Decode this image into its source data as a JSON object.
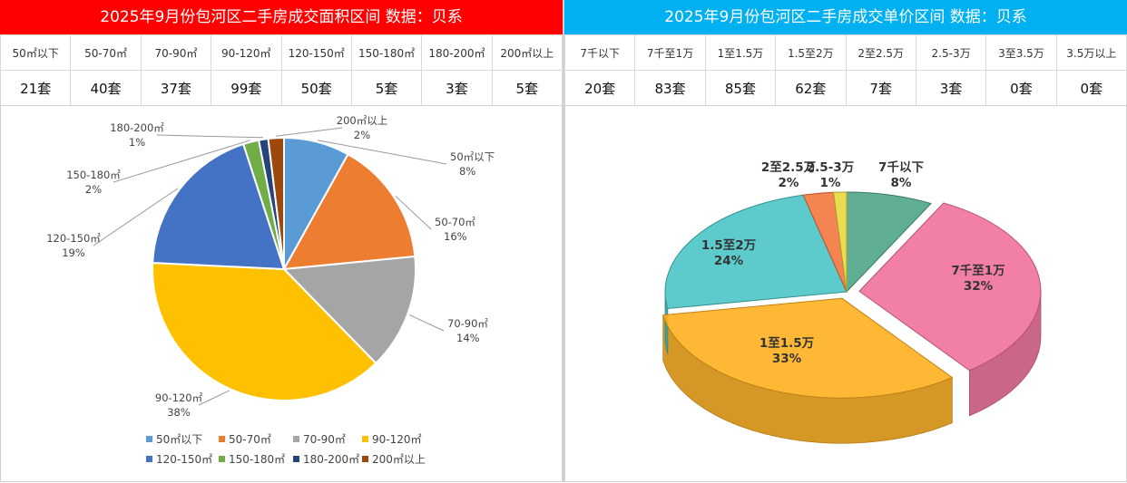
{
  "left": {
    "title": "2025年9月份包河区二手房成交面积区间 数据：贝系",
    "headers": [
      "50㎡以下",
      "50-70㎡",
      "70-90㎡",
      "90-120㎡",
      "120-150㎡",
      "150-180㎡",
      "180-200㎡",
      "200㎡以上"
    ],
    "values": [
      "21套",
      "40套",
      "37套",
      "99套",
      "50套",
      "5套",
      "3套",
      "5套"
    ]
  },
  "right": {
    "title": "2025年9月份包河区二手房成交单价区间 数据：贝系",
    "headers": [
      "7千以下",
      "7千至1万",
      "1至1.5万",
      "1.5至2万",
      "2至2.5万",
      "2.5-3万",
      "3至3.5万",
      "3.5万以上"
    ],
    "values": [
      "20套",
      "83套",
      "85套",
      "62套",
      "7套",
      "3套",
      "0套",
      "0套"
    ]
  },
  "chart_data": [
    {
      "type": "pie",
      "categories": [
        "50㎡以下",
        "50-70㎡",
        "70-90㎡",
        "90-120㎡",
        "120-150㎡",
        "150-180㎡",
        "180-200㎡",
        "200㎡以上"
      ],
      "values": [
        21,
        40,
        37,
        99,
        50,
        5,
        3,
        5
      ],
      "percent_labels": [
        "8%",
        "16%",
        "14%",
        "38%",
        "19%",
        "2%",
        "1%",
        "2%"
      ],
      "colors": [
        "#5b9bd5",
        "#ed7d31",
        "#a5a5a5",
        "#ffc000",
        "#4472c4",
        "#70ad47",
        "#264478",
        "#9e480e"
      ],
      "legend_position": "bottom"
    },
    {
      "type": "pie",
      "categories": [
        "7千以下",
        "7千至1万",
        "1至1.5万",
        "1.5至2万",
        "2至2.5万",
        "2.5-3万"
      ],
      "values": [
        20,
        83,
        85,
        62,
        7,
        3
      ],
      "percent_labels": [
        "8%",
        "32%",
        "33%",
        "24%",
        "2%",
        "1%"
      ],
      "colors": [
        "#4aa384",
        "#f06e9a",
        "#ffae1a",
        "#47c4c4",
        "#f2733a",
        "#e8d83a"
      ]
    }
  ]
}
